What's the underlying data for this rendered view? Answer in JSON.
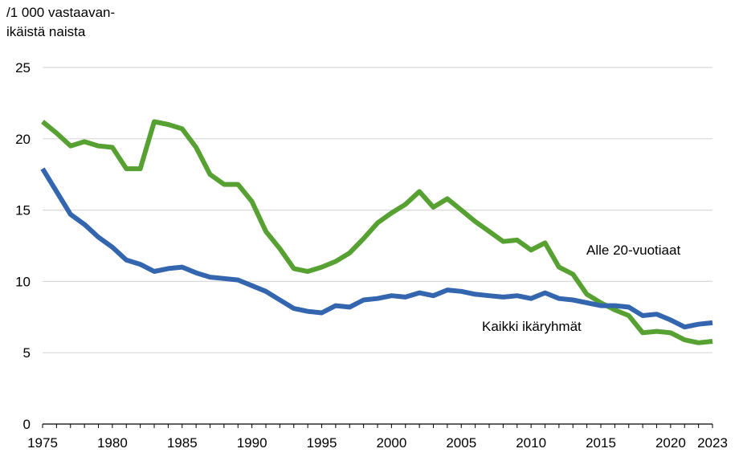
{
  "chart_data": {
    "type": "line",
    "title": "",
    "ylabel_lines": [
      "/1 000 vastaavan-",
      "ikäistä naista"
    ],
    "xlabel": "",
    "ylim": [
      0,
      25
    ],
    "xlim": [
      1975,
      2023
    ],
    "grid": true,
    "y_ticks": [
      0,
      5,
      10,
      15,
      20,
      25
    ],
    "x_ticks": [
      1975,
      1980,
      1985,
      1990,
      1995,
      2000,
      2005,
      2010,
      2015,
      2020,
      2023
    ],
    "x": [
      1975,
      1976,
      1977,
      1978,
      1979,
      1980,
      1981,
      1982,
      1983,
      1984,
      1985,
      1986,
      1987,
      1988,
      1989,
      1990,
      1991,
      1992,
      1993,
      1994,
      1995,
      1996,
      1997,
      1998,
      1999,
      2000,
      2001,
      2002,
      2003,
      2004,
      2005,
      2006,
      2007,
      2008,
      2009,
      2010,
      2011,
      2012,
      2013,
      2014,
      2015,
      2016,
      2017,
      2018,
      2019,
      2020,
      2021,
      2022,
      2023
    ],
    "series": [
      {
        "name": "Alle 20-vuotiaat",
        "color": "#57A133",
        "values": [
          21.2,
          20.4,
          19.5,
          19.8,
          19.5,
          19.4,
          17.9,
          17.9,
          21.2,
          21.0,
          20.7,
          19.4,
          17.5,
          16.8,
          16.8,
          15.6,
          13.5,
          12.3,
          10.9,
          10.7,
          11.0,
          11.4,
          12.0,
          13.0,
          14.1,
          14.8,
          15.4,
          16.3,
          15.2,
          15.8,
          15.0,
          14.2,
          13.5,
          12.8,
          12.9,
          12.2,
          12.7,
          11.0,
          10.5,
          9.1,
          8.5,
          8.0,
          7.6,
          6.4,
          6.5,
          6.4,
          5.9,
          5.7,
          5.8
        ]
      },
      {
        "name": "Kaikki ikäryhmät",
        "color": "#3465AF",
        "values": [
          17.9,
          16.3,
          14.7,
          14.0,
          13.1,
          12.4,
          11.5,
          11.2,
          10.7,
          10.9,
          11.0,
          10.6,
          10.3,
          10.2,
          10.1,
          9.7,
          9.3,
          8.7,
          8.1,
          7.9,
          7.8,
          8.3,
          8.2,
          8.7,
          8.8,
          9.0,
          8.9,
          9.2,
          9.0,
          9.4,
          9.3,
          9.1,
          9.0,
          8.9,
          9.0,
          8.8,
          9.2,
          8.8,
          8.7,
          8.5,
          8.3,
          8.3,
          8.2,
          7.6,
          7.7,
          7.3,
          6.8,
          7.0,
          7.1
        ]
      }
    ]
  }
}
